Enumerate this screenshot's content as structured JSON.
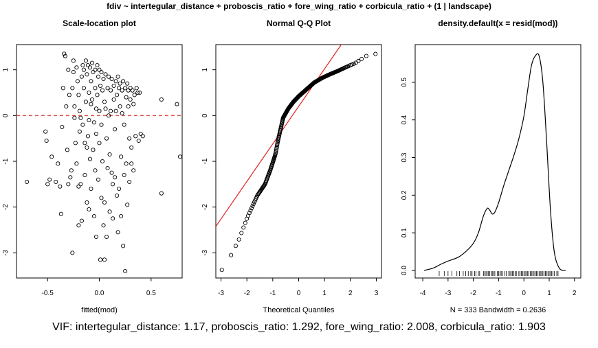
{
  "figure": {
    "main_title": "fdiv ~ intertegular_distance + proboscis_ratio + fore_wing_ratio + corbicula_ratio + (1 | landscape)",
    "footer": "VIF: intertegular_distance: 1.17, proboscis_ratio: 1.292, fore_wing_ratio: 2.008, corbicula_ratio: 1.903"
  },
  "chart_data": [
    {
      "id": "scale-location",
      "type": "scatter",
      "title": "Scale-location plot",
      "xlabel": "fitted(mod)",
      "ylabel": "",
      "xlim": [
        -0.8,
        0.8
      ],
      "ylim": [
        -3.55,
        1.55
      ],
      "xticks": [
        -0.5,
        0.0,
        0.5
      ],
      "xtick_labels": [
        "-0.5",
        "0.0",
        "0.5"
      ],
      "yticks": [
        -3,
        -2,
        -1,
        0,
        1
      ],
      "ytick_labels": [
        "-3",
        "-2",
        "-1",
        "0",
        "1"
      ],
      "grid": false,
      "reference_line": {
        "y": 0,
        "style": "dashed",
        "color": "#e05050"
      },
      "points": [
        [
          -0.7,
          -1.45
        ],
        [
          -0.52,
          -0.35
        ],
        [
          -0.51,
          -0.55
        ],
        [
          -0.5,
          -1.5
        ],
        [
          -0.48,
          -1.4
        ],
        [
          -0.46,
          -0.9
        ],
        [
          -0.42,
          -1.45
        ],
        [
          -0.4,
          -1.05
        ],
        [
          -0.38,
          -1.55
        ],
        [
          -0.37,
          -2.15
        ],
        [
          -0.36,
          -0.25
        ],
        [
          -0.35,
          0.6
        ],
        [
          -0.34,
          1.35
        ],
        [
          -0.33,
          1.3
        ],
        [
          -0.32,
          0.2
        ],
        [
          -0.31,
          -0.75
        ],
        [
          -0.3,
          -1.5
        ],
        [
          -0.3,
          1.0
        ],
        [
          -0.29,
          0.45
        ],
        [
          -0.28,
          -1.35
        ],
        [
          -0.27,
          -1.2
        ],
        [
          -0.26,
          0.6
        ],
        [
          -0.26,
          -3.0
        ],
        [
          -0.25,
          0.95
        ],
        [
          -0.25,
          1.2
        ],
        [
          -0.24,
          -0.05
        ],
        [
          -0.24,
          0.2
        ],
        [
          -0.23,
          -0.6
        ],
        [
          -0.22,
          -1.05
        ],
        [
          -0.22,
          1.05
        ],
        [
          -0.21,
          0.75
        ],
        [
          -0.2,
          -1.55
        ],
        [
          -0.2,
          -2.4
        ],
        [
          -0.2,
          0.45
        ],
        [
          -0.19,
          -0.35
        ],
        [
          -0.19,
          0.1
        ],
        [
          -0.18,
          -0.05
        ],
        [
          -0.18,
          -1.5
        ],
        [
          -0.17,
          -2.3
        ],
        [
          -0.17,
          0.85
        ],
        [
          -0.16,
          -0.2
        ],
        [
          -0.16,
          1.1
        ],
        [
          -0.15,
          1.0
        ],
        [
          -0.15,
          0.6
        ],
        [
          -0.14,
          -0.6
        ],
        [
          -0.14,
          -1.3
        ],
        [
          -0.13,
          1.2
        ],
        [
          -0.13,
          0.3
        ],
        [
          -0.12,
          -0.7
        ],
        [
          -0.12,
          0.9
        ],
        [
          -0.12,
          -1.9
        ],
        [
          -0.11,
          -0.45
        ],
        [
          -0.11,
          1.1
        ],
        [
          -0.1,
          -2.05
        ],
        [
          -0.1,
          0.5
        ],
        [
          -0.1,
          -0.1
        ],
        [
          -0.09,
          1.05
        ],
        [
          -0.09,
          -0.95
        ],
        [
          -0.08,
          0.25
        ],
        [
          -0.08,
          0.75
        ],
        [
          -0.08,
          -1.6
        ],
        [
          -0.07,
          1.15
        ],
        [
          -0.07,
          0.35
        ],
        [
          -0.06,
          -0.75
        ],
        [
          -0.06,
          0.95
        ],
        [
          -0.05,
          -2.2
        ],
        [
          -0.05,
          -0.15
        ],
        [
          -0.04,
          0.6
        ],
        [
          -0.04,
          1.0
        ],
        [
          -0.04,
          -1.2
        ],
        [
          -0.03,
          0.15
        ],
        [
          -0.03,
          -0.4
        ],
        [
          -0.03,
          -2.65
        ],
        [
          -0.02,
          1.1
        ],
        [
          -0.02,
          0.45
        ],
        [
          -0.01,
          -1.4
        ],
        [
          -0.01,
          0.85
        ],
        [
          0.0,
          -0.6
        ],
        [
          0.0,
          1.0
        ],
        [
          0.0,
          0.1
        ],
        [
          0.01,
          -3.15
        ],
        [
          0.01,
          0.65
        ],
        [
          0.02,
          -1.8
        ],
        [
          0.02,
          0.95
        ],
        [
          0.02,
          -0.2
        ],
        [
          0.03,
          0.55
        ],
        [
          0.03,
          -1.0
        ],
        [
          0.04,
          0.8
        ],
        [
          0.04,
          -2.4
        ],
        [
          0.05,
          0.3
        ],
        [
          0.05,
          -3.15
        ],
        [
          0.05,
          -1.9
        ],
        [
          0.06,
          0.15
        ],
        [
          0.06,
          0.9
        ],
        [
          0.07,
          -0.5
        ],
        [
          0.07,
          -2.65
        ],
        [
          0.08,
          0.6
        ],
        [
          0.08,
          -1.15
        ],
        [
          0.09,
          0.85
        ],
        [
          0.09,
          0.0
        ],
        [
          0.1,
          -0.85
        ],
        [
          0.1,
          -2.1
        ],
        [
          0.11,
          0.55
        ],
        [
          0.11,
          0.1
        ],
        [
          0.12,
          -1.25
        ],
        [
          0.12,
          0.8
        ],
        [
          0.13,
          -1.5
        ],
        [
          0.13,
          -2.25
        ],
        [
          0.14,
          0.35
        ],
        [
          0.14,
          0.65
        ],
        [
          0.15,
          -0.3
        ],
        [
          0.15,
          -1.35
        ],
        [
          0.16,
          0.75
        ],
        [
          0.16,
          0.1
        ],
        [
          0.17,
          -1.75
        ],
        [
          0.17,
          0.45
        ],
        [
          0.18,
          -2.55
        ],
        [
          0.18,
          0.85
        ],
        [
          0.19,
          0.6
        ],
        [
          0.19,
          -1.6
        ],
        [
          0.2,
          0.2
        ],
        [
          0.2,
          0.7
        ],
        [
          0.21,
          -0.9
        ],
        [
          0.21,
          -2.2
        ],
        [
          0.22,
          0.55
        ],
        [
          0.22,
          0.05
        ],
        [
          0.23,
          -2.85
        ],
        [
          0.23,
          0.75
        ],
        [
          0.24,
          -1.3
        ],
        [
          0.24,
          -0.2
        ],
        [
          0.25,
          -3.4
        ],
        [
          0.25,
          0.6
        ],
        [
          0.26,
          0.4
        ],
        [
          0.26,
          -1.05
        ],
        [
          0.27,
          0.7
        ],
        [
          0.27,
          -1.95
        ],
        [
          0.28,
          0.2
        ],
        [
          0.28,
          0.55
        ],
        [
          0.29,
          -0.5
        ],
        [
          0.29,
          -1.45
        ],
        [
          0.3,
          0.6
        ],
        [
          0.3,
          0.35
        ],
        [
          0.31,
          -0.7
        ],
        [
          0.31,
          -1.05
        ],
        [
          0.32,
          0.55
        ],
        [
          0.33,
          0.25
        ],
        [
          0.33,
          -1.2
        ],
        [
          0.34,
          0.45
        ],
        [
          0.35,
          -0.45
        ],
        [
          0.36,
          0.6
        ],
        [
          0.37,
          0.5
        ],
        [
          0.38,
          -0.55
        ],
        [
          0.39,
          0.5
        ],
        [
          0.4,
          -0.4
        ],
        [
          0.42,
          -0.45
        ],
        [
          0.6,
          0.35
        ],
        [
          0.6,
          -1.7
        ],
        [
          0.75,
          0.25
        ],
        [
          0.78,
          -0.9
        ]
      ]
    },
    {
      "id": "normal-qq",
      "type": "scatter",
      "title": "Normal Q-Q Plot",
      "xlabel": "Theoretical Quantiles",
      "ylabel": "",
      "xlim": [
        -3.2,
        3.2
      ],
      "ylim": [
        -3.55,
        1.55
      ],
      "xticks": [
        -3,
        -2,
        -1,
        0,
        1,
        2,
        3
      ],
      "xtick_labels": [
        "-3",
        "-2",
        "-1",
        "0",
        "1",
        "2",
        "3"
      ],
      "yticks": [
        -3,
        -2,
        -1,
        0,
        1
      ],
      "ytick_labels": [
        "-3",
        "-2",
        "-1",
        "0",
        "1"
      ],
      "grid": false,
      "reference_line": {
        "intercept": 0.2,
        "slope": 0.82,
        "color": "#e02020"
      },
      "n": 333
    },
    {
      "id": "density",
      "type": "line",
      "title": "density.default(x = resid(mod))",
      "xlabel": "N = 333   Bandwidth = 0.2636",
      "ylabel": "",
      "xlim": [
        -4.3,
        2.25
      ],
      "ylim": [
        -0.02,
        0.6
      ],
      "xticks": [
        -4,
        -3,
        -2,
        -1,
        0,
        1,
        2
      ],
      "xtick_labels": [
        "-4",
        "-3",
        "-2",
        "-1",
        "0",
        "1",
        "2"
      ],
      "yticks": [
        0.0,
        0.1,
        0.2,
        0.3,
        0.4,
        0.5
      ],
      "ytick_labels": [
        "0.0",
        "0.1",
        "0.2",
        "0.3",
        "0.4",
        "0.5"
      ],
      "grid": false,
      "x": [
        -3.95,
        -3.6,
        -3.3,
        -3.0,
        -2.6,
        -2.3,
        -2.0,
        -1.8,
        -1.6,
        -1.45,
        -1.35,
        -1.25,
        -1.15,
        -1.0,
        -0.8,
        -0.6,
        -0.4,
        -0.2,
        0.0,
        0.15,
        0.3,
        0.45,
        0.6,
        0.75,
        0.9,
        1.05,
        1.2,
        1.4,
        1.65
      ],
      "y": [
        0.0,
        0.006,
        0.016,
        0.025,
        0.035,
        0.05,
        0.072,
        0.1,
        0.145,
        0.165,
        0.16,
        0.15,
        0.155,
        0.18,
        0.225,
        0.265,
        0.305,
        0.35,
        0.41,
        0.48,
        0.545,
        0.57,
        0.57,
        0.5,
        0.34,
        0.16,
        0.05,
        0.006,
        0.0
      ],
      "rug": [
        -3.35,
        -3.15,
        -3.0,
        -2.85,
        -2.65,
        -2.55,
        -2.4,
        -2.3,
        -2.2,
        -2.1,
        -2.05,
        -1.95,
        -1.9,
        -1.8,
        -1.75,
        -1.6,
        -1.55,
        -1.5,
        -1.45,
        -1.4,
        -1.35,
        -1.3,
        -1.25,
        -1.2,
        -1.15,
        -1.05,
        -1.0,
        -0.95,
        -0.9,
        -0.85,
        -0.75,
        -0.7,
        -0.6,
        -0.55,
        -0.5,
        -0.45,
        -0.4,
        -0.35,
        -0.3,
        -0.2,
        -0.15,
        -0.1,
        -0.05,
        0.0,
        0.05,
        0.1,
        0.15,
        0.2,
        0.25,
        0.3,
        0.35,
        0.4,
        0.45,
        0.5,
        0.55,
        0.6,
        0.65,
        0.7,
        0.75,
        0.8,
        0.85,
        0.9,
        0.95,
        1.0,
        1.05,
        1.1,
        1.15,
        1.2,
        1.3,
        1.35
      ]
    }
  ]
}
